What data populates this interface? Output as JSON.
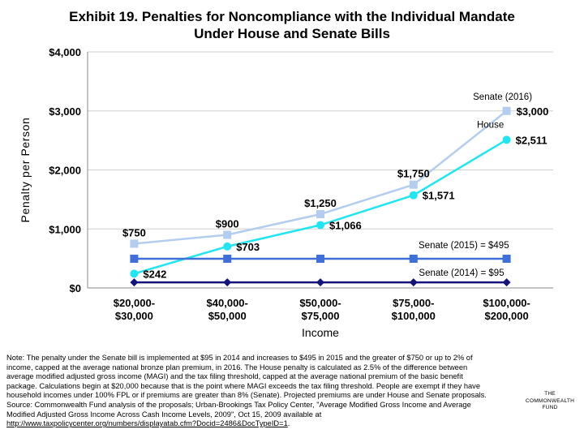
{
  "chart_data": {
    "type": "line",
    "title_lines": [
      "Exhibit 19. Penalties for Noncompliance with the Individual Mandate",
      "Under House and Senate Bills"
    ],
    "xlabel": "Income",
    "ylabel": "Penalty per Person",
    "ylim": [
      0,
      4000
    ],
    "yticks": [
      "$0",
      "$1,000",
      "$2,000",
      "$3,000",
      "$4,000"
    ],
    "ytick_values": [
      0,
      1000,
      2000,
      3000,
      4000
    ],
    "grid": true,
    "categories": [
      [
        "$20,000-",
        "$30,000"
      ],
      [
        "$40,000-",
        "$50,000"
      ],
      [
        "$50,000-",
        "$75,000"
      ],
      [
        "$75,000-",
        "$100,000"
      ],
      [
        "$100,000-",
        "$200,000"
      ]
    ],
    "series": [
      {
        "name": "Senate (2016)",
        "color": "#b2cdf0",
        "marker": "square",
        "values": [
          750,
          900,
          1250,
          1750,
          3000
        ],
        "labels": [
          "$750",
          "$900",
          "$1,250",
          "$1,750",
          "$3,000"
        ]
      },
      {
        "name": "House",
        "color": "#1fe6f2",
        "marker": "circle",
        "values": [
          242,
          703,
          1066,
          1571,
          2511
        ],
        "labels": [
          "$242",
          "$703",
          "$1,066",
          "$1,571",
          "$2,511"
        ]
      },
      {
        "name": "Senate (2015) = $495",
        "color": "#3f6fd8",
        "marker": "square",
        "values": [
          495,
          495,
          495,
          495,
          495
        ],
        "labels": []
      },
      {
        "name": "Senate (2014) = $95",
        "color": "#14147a",
        "marker": "diamond",
        "values": [
          95,
          95,
          95,
          95,
          95
        ],
        "labels": []
      }
    ]
  },
  "note": {
    "lines": [
      "Note: The penalty under the Senate bill is implemented at $95 in 2014 and increases to $495 in 2015 and the greater of $750 or up to 2% of",
      "income, capped at the average national bronze plan premium, in 2016. The House penalty is calculated as 2.5% of the difference between",
      "average modified adjusted gross income (MAGI) and the tax filing threshold, capped at the average national premium of the basic benefit",
      "package. Calculations begin at $20,000 because that is the point where MAGI exceeds the tax filing threshold. People are exempt if they have",
      "household incomes under 100% FPL or if premiums are greater than 8% (Senate). Projected premiums are under House and Senate proposals.",
      "Source: Commonwealth Fund analysis of the proposals; Urban-Brookings Tax Policy Center, \"Average Modified Gross Income and Average",
      "Modified Adjusted Gross Income Across Cash Income Levels, 2009\", Oct 15, 2009 available at"
    ],
    "link": "http://www.taxpolicycenter.org/numbers/displayatab.cfm?Docid=2486&DocTypeID=1",
    "link_suffix": "."
  },
  "logo": {
    "line1": "THE",
    "line2": "COMMONWEALTH",
    "line3": "FUND"
  }
}
